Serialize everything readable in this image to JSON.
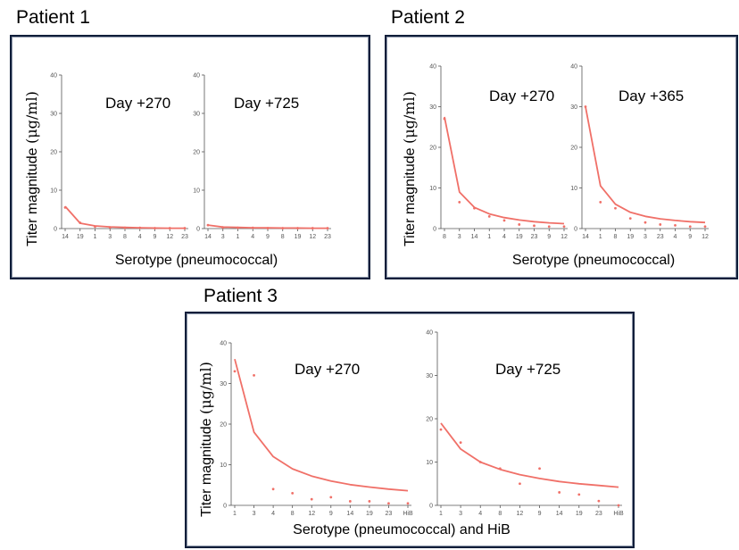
{
  "patients": [
    {
      "title": "Patient 1",
      "ylabel": "Titer magnitude",
      "yunit": "(μg/ml)",
      "xlabel": "Serotype (pneumococcal)",
      "panels": [
        {
          "label": "Day +270"
        },
        {
          "label": "Day +725"
        }
      ]
    },
    {
      "title": "Patient 2",
      "ylabel": "Titer magnitude",
      "yunit": "(μg/ml)",
      "xlabel": "Serotype (pneumococcal)",
      "panels": [
        {
          "label": "Day +270"
        },
        {
          "label": "Day +365"
        }
      ]
    },
    {
      "title": "Patient 3",
      "ylabel": "Titer magnitude",
      "yunit": "(μg/ml)",
      "xlabel": "Serotype (pneumococcal) and HiB",
      "panels": [
        {
          "label": "Day +270"
        },
        {
          "label": "Day +725"
        }
      ]
    }
  ],
  "colors": {
    "series": "#f07068",
    "axis": "#555555",
    "frame": "#0f1e3a"
  },
  "chart_data": [
    {
      "type": "scatter",
      "title": "Day +270",
      "ylim": [
        0,
        40
      ],
      "yticks": [
        0,
        10,
        20,
        30,
        40
      ],
      "categories": [
        "14",
        "19",
        "1",
        "3",
        "8",
        "4",
        "9",
        "12",
        "23"
      ],
      "values": [
        5.5,
        1.5,
        0.5,
        0.3,
        0.2,
        0.2,
        0.1,
        0.1,
        0.1
      ],
      "fit": [
        5.8,
        1.4,
        0.7,
        0.45,
        0.3,
        0.2,
        0.15,
        0.1,
        0.1
      ]
    },
    {
      "type": "scatter",
      "title": "Day +725",
      "ylim": [
        0,
        40
      ],
      "yticks": [
        0,
        10,
        20,
        30,
        40
      ],
      "categories": [
        "14",
        "3",
        "1",
        "4",
        "9",
        "8",
        "19",
        "12",
        "23"
      ],
      "values": [
        0.9,
        0.3,
        0.2,
        0.2,
        0.1,
        0.1,
        0.1,
        0.1,
        0.1
      ],
      "fit": [
        0.9,
        0.4,
        0.3,
        0.2,
        0.2,
        0.15,
        0.15,
        0.1,
        0.1
      ]
    },
    {
      "type": "scatter",
      "title": "Day +270",
      "ylim": [
        0,
        40
      ],
      "yticks": [
        0,
        10,
        20,
        30,
        40
      ],
      "categories": [
        "8",
        "3",
        "14",
        "1",
        "4",
        "19",
        "23",
        "9",
        "12"
      ],
      "values": [
        27,
        6.5,
        5,
        3,
        2,
        1,
        0.7,
        0.5,
        0.5
      ],
      "fit": [
        27.5,
        9,
        5.2,
        3.6,
        2.7,
        2.1,
        1.7,
        1.4,
        1.2
      ]
    },
    {
      "type": "scatter",
      "title": "Day +365",
      "ylim": [
        0,
        40
      ],
      "yticks": [
        0,
        10,
        20,
        30,
        40
      ],
      "categories": [
        "14",
        "1",
        "8",
        "19",
        "3",
        "23",
        "4",
        "9",
        "12"
      ],
      "values": [
        30,
        6.5,
        5,
        2.5,
        1.5,
        1,
        0.8,
        0.5,
        0.5
      ],
      "fit": [
        30,
        10.5,
        6,
        4,
        3,
        2.4,
        2,
        1.7,
        1.5
      ]
    },
    {
      "type": "scatter",
      "title": "Day +270",
      "ylim": [
        0,
        40
      ],
      "yticks": [
        0,
        10,
        20,
        30,
        40
      ],
      "categories": [
        "1",
        "3",
        "4",
        "8",
        "12",
        "9",
        "14",
        "19",
        "23",
        "HiB"
      ],
      "values": [
        33,
        32,
        4,
        3,
        1.5,
        2,
        1,
        1,
        0.5,
        0.5
      ],
      "fit": [
        36,
        18,
        12,
        9,
        7.2,
        6,
        5.1,
        4.5,
        4,
        3.6
      ]
    },
    {
      "type": "scatter",
      "title": "Day +725",
      "ylim": [
        0,
        40
      ],
      "yticks": [
        0,
        10,
        20,
        30,
        40
      ],
      "categories": [
        "1",
        "3",
        "4",
        "8",
        "12",
        "9",
        "14",
        "19",
        "23",
        "HiB"
      ],
      "values": [
        17.5,
        14.5,
        10,
        8.5,
        5,
        8.5,
        3,
        2.5,
        1,
        0
      ],
      "fit": [
        19,
        13,
        10,
        8.3,
        7.1,
        6.2,
        5.5,
        5,
        4.6,
        4.2
      ]
    }
  ]
}
